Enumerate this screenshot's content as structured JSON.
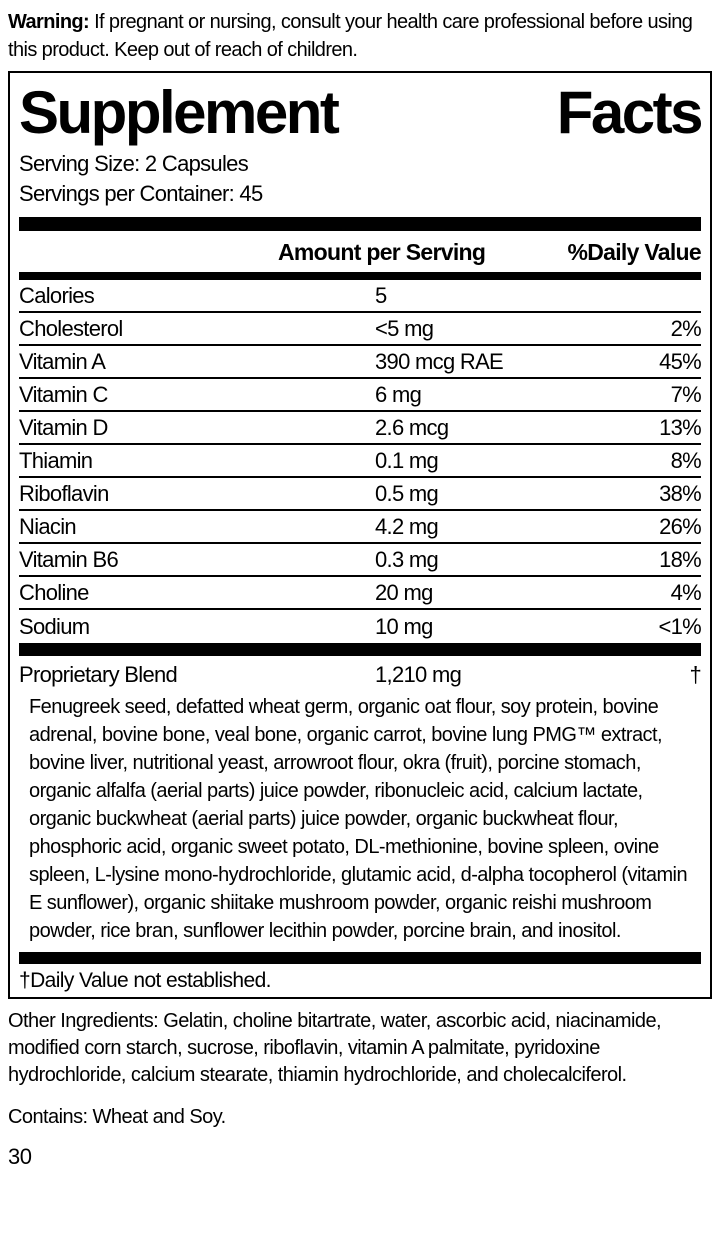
{
  "warning": {
    "label": "Warning:",
    "text": " If pregnant or nursing, consult your health care professional before using this product. Keep out of reach of children."
  },
  "panel": {
    "title_left": "Supplement",
    "title_right": "Facts",
    "serving_size": "Serving Size: 2 Capsules",
    "servings_per_container": "Servings per Container: 45",
    "columns": {
      "amount": "Amount per Serving",
      "dv": "%Daily Value"
    },
    "nutrients": [
      {
        "name": "Calories",
        "amount": "5",
        "dv": ""
      },
      {
        "name": "Cholesterol",
        "amount": "<5 mg",
        "dv": "2%"
      },
      {
        "name": "Vitamin A",
        "amount": "390 mcg RAE",
        "dv": "45%"
      },
      {
        "name": "Vitamin C",
        "amount": "6 mg",
        "dv": "7%"
      },
      {
        "name": "Vitamin D",
        "amount": "2.6 mcg",
        "dv": "13%"
      },
      {
        "name": "Thiamin",
        "amount": "0.1 mg",
        "dv": "8%"
      },
      {
        "name": "Riboflavin",
        "amount": "0.5 mg",
        "dv": "38%"
      },
      {
        "name": "Niacin",
        "amount": "4.2 mg",
        "dv": "26%"
      },
      {
        "name": "Vitamin B6",
        "amount": "0.3 mg",
        "dv": "18%"
      },
      {
        "name": "Choline",
        "amount": "20 mg",
        "dv": "4%"
      },
      {
        "name": "Sodium",
        "amount": "10 mg",
        "dv": "<1%"
      }
    ],
    "blend": {
      "name": "Proprietary Blend",
      "amount": "1,210 mg",
      "dv": "†",
      "ingredients": "Fenugreek seed, defatted wheat germ, organic oat flour, soy protein, bovine adrenal, bovine bone, veal bone, organic carrot, bovine lung PMG™ extract, bovine liver, nutritional yeast, arrowroot flour, okra (fruit), porcine stomach, organic alfalfa (aerial parts) juice powder, ribonucleic acid, calcium lactate, organic buckwheat (aerial parts) juice powder, organic buckwheat flour, phosphoric acid, organic sweet potato, DL-methionine, bovine spleen, ovine spleen, L-lysine mono-hydrochloride, glutamic acid, d-alpha tocopherol (vitamin E sunflower), organic shiitake mushroom powder, organic reishi mushroom powder, rice bran, sunflower lecithin powder, porcine brain, and inositol."
    },
    "footnote": "†Daily Value not established."
  },
  "other_ingredients": "Other Ingredients: Gelatin, choline bitartrate, water, ascorbic acid, niacinamide, modified corn starch, sucrose, riboflavin, vitamin A palmitate, pyridoxine hydrochloride, calcium stearate, thiamin hydrochloride, and cholecalciferol.",
  "contains": "Contains: Wheat and Soy.",
  "page_number": "30",
  "colors": {
    "text": "#000000",
    "background": "#ffffff",
    "rule": "#000000"
  }
}
